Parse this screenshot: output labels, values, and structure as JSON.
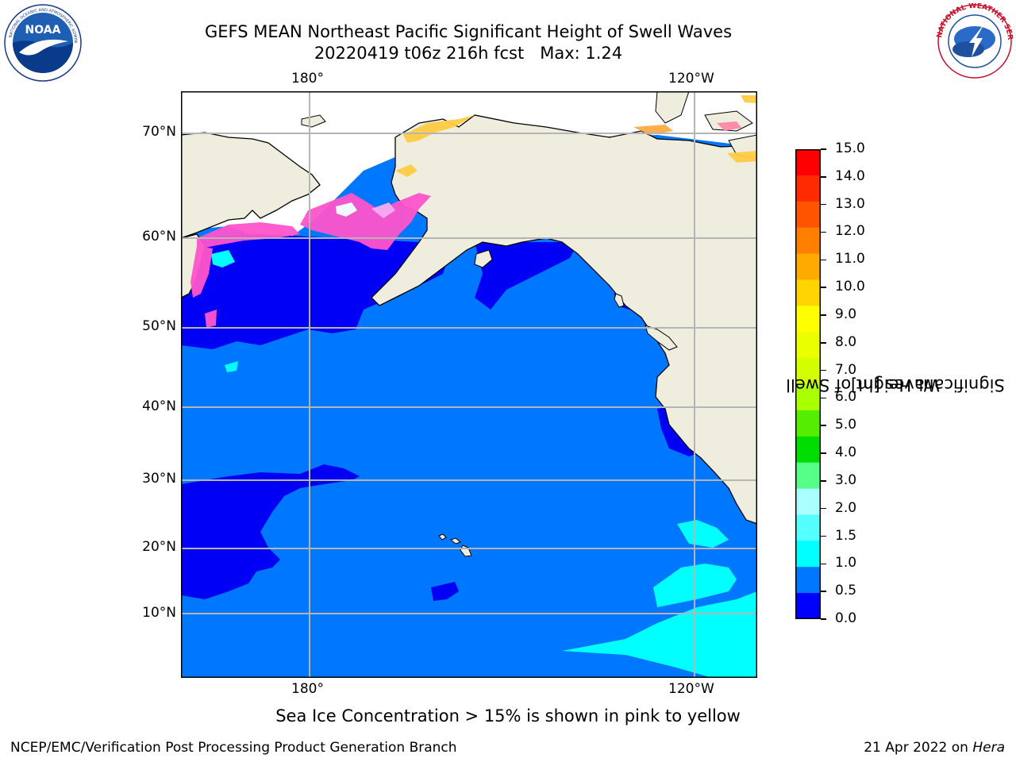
{
  "title": {
    "line1": "GEFS MEAN Northeast Pacific Significant Height of Swell Waves",
    "line2": "20220419 t06z 216h fcst   Max: 1.24"
  },
  "logos": {
    "left": {
      "icon": "noaa-logo",
      "text": "NOAA"
    },
    "right": {
      "icon": "nws-logo"
    }
  },
  "map": {
    "lon_labels_top": [
      "180°",
      "120°W"
    ],
    "lon_labels_bottom": [
      "180°",
      "120°W"
    ],
    "lat_labels": [
      "70°N",
      "60°N",
      "50°N",
      "40°N",
      "30°N",
      "20°N",
      "10°N"
    ],
    "colors": {
      "ocean_main": "#0077ff",
      "ocean_low": "#0000f5",
      "ocean_mid": "#00ffff",
      "land": "#eeedde",
      "ice_pink": "#ff55cc",
      "ice_yellow": "#ffcc44",
      "grid": "#b5b5b5"
    }
  },
  "colorbar": {
    "title_line1": "Significant Height of Swell",
    "title_line2": "Waves [m]",
    "ticks": [
      "15.0",
      "14.0",
      "13.0",
      "12.0",
      "11.0",
      "10.0",
      "9.0",
      "8.0",
      "7.0",
      "6.0",
      "5.0",
      "4.0",
      "3.0",
      "2.0",
      "1.5",
      "1.0",
      "0.5",
      "0.0"
    ],
    "colors": [
      "#ff0000",
      "#ff2a00",
      "#ff5500",
      "#ff7f00",
      "#ffaa00",
      "#ffd400",
      "#ffff00",
      "#eaff00",
      "#d4ff00",
      "#aaff00",
      "#55ee00",
      "#00dd00",
      "#55ff88",
      "#aaffff",
      "#55ffff",
      "#00ffff",
      "#0077ff",
      "#0000ff"
    ]
  },
  "footer": {
    "note": "Sea Ice Concentration > 15% is shown in pink to yellow",
    "credit": "NCEP/EMC/Verification Post Processing Product Generation Branch",
    "date": "21 Apr 2022 on ",
    "host": "Hera"
  }
}
